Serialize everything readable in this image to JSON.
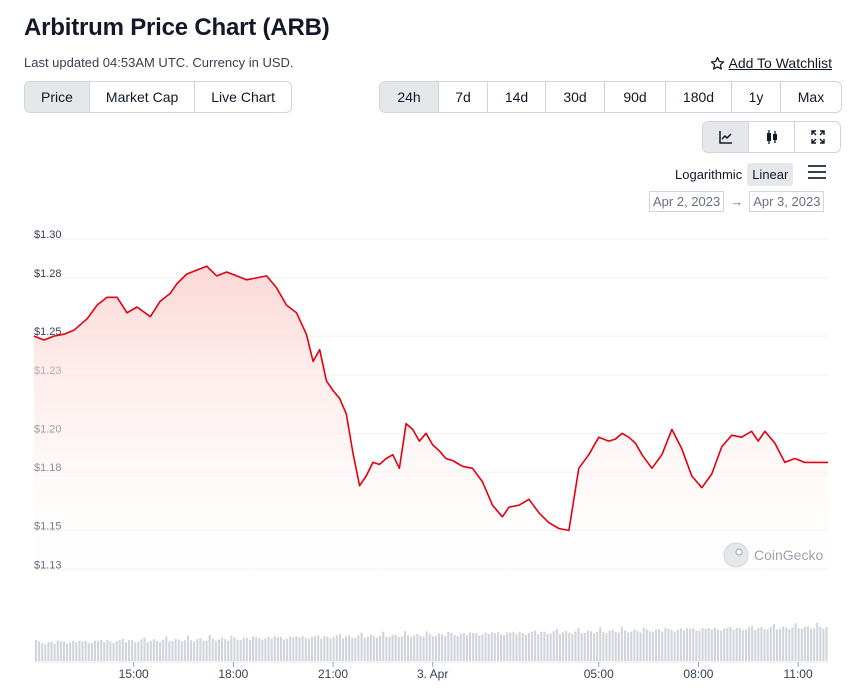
{
  "header": {
    "title": "Arbitrum Price Chart (ARB)",
    "subtitle": "Last updated 04:53AM UTC. Currency in USD.",
    "watchlist_label": "Add To Watchlist",
    "watchlist_icon": "star-outline-icon"
  },
  "tabs": [
    {
      "label": "Price",
      "active": true
    },
    {
      "label": "Market Cap",
      "active": false
    },
    {
      "label": "Live Chart",
      "active": false
    }
  ],
  "ranges": [
    {
      "label": "24h",
      "active": true
    },
    {
      "label": "7d",
      "active": false
    },
    {
      "label": "14d",
      "active": false
    },
    {
      "label": "30d",
      "active": false
    },
    {
      "label": "90d",
      "active": false
    },
    {
      "label": "180d",
      "active": false
    },
    {
      "label": "1y",
      "active": false
    },
    {
      "label": "Max",
      "active": false
    }
  ],
  "chart_types": [
    {
      "icon": "line-chart-icon",
      "active": true
    },
    {
      "icon": "candlestick-icon",
      "active": false
    },
    {
      "icon": "expand-icon",
      "active": false
    }
  ],
  "scale": {
    "logarithmic_label": "Logarithmic",
    "linear_label": "Linear",
    "active": "Linear",
    "menu_icon": "hamburger-menu-icon"
  },
  "date_range": {
    "from": "Apr 2, 2023",
    "arrow": "→",
    "to": "Apr 3, 2023"
  },
  "watermark": "CoinGecko",
  "colors": {
    "line": "#e3000f",
    "fill_top": "#fcd4d2",
    "volume": "#d1d5db",
    "active_bg": "#e5e7eb"
  },
  "chart_data": {
    "type": "line",
    "title": "",
    "xlabel": "",
    "ylabel": "",
    "ylim": [
      1.125,
      1.3
    ],
    "yticks": [
      1.3,
      1.28,
      1.25,
      1.23,
      1.2,
      1.18,
      1.15,
      1.13
    ],
    "ytick_labels": [
      "$1.30",
      "$1.28",
      "$1.25",
      "$1.23",
      "$1.20",
      "$1.18",
      "$1.15",
      "$1.13"
    ],
    "x_range_hours": [
      12.0,
      35.9
    ],
    "x_ticks": [
      {
        "h": 15,
        "label": "15:00"
      },
      {
        "h": 18,
        "label": "18:00"
      },
      {
        "h": 21,
        "label": "21:00"
      },
      {
        "h": 24,
        "label": "3. Apr"
      },
      {
        "h": 29,
        "label": "05:00"
      },
      {
        "h": 32,
        "label": "08:00"
      },
      {
        "h": 35,
        "label": "11:00"
      }
    ],
    "grid": true,
    "series": [
      {
        "x": [
          12.0,
          12.3,
          12.6,
          12.9,
          13.2,
          13.6,
          13.9,
          14.2,
          14.5,
          14.8,
          15.1,
          15.5,
          15.8,
          16.1,
          16.3,
          16.6,
          16.9,
          17.2,
          17.5,
          17.8,
          18.1,
          18.4,
          18.7,
          19.0,
          19.3,
          19.6,
          19.9,
          20.2,
          20.4,
          20.6,
          20.8,
          21.0,
          21.2,
          21.4,
          21.6,
          21.8,
          22.0,
          22.2,
          22.4,
          22.6,
          22.8,
          23.0,
          23.2,
          23.4,
          23.6,
          23.8,
          24.0,
          24.2,
          24.4,
          24.6,
          24.9,
          25.2,
          25.5,
          25.8,
          26.1,
          26.3,
          26.6,
          26.9,
          27.2,
          27.5,
          27.8,
          28.1,
          28.4,
          28.7,
          29.0,
          29.3,
          29.5,
          29.7,
          29.9,
          30.1,
          30.3,
          30.6,
          30.9,
          31.2,
          31.5,
          31.8,
          32.1,
          32.4,
          32.7,
          33.0,
          33.3,
          33.6,
          33.8,
          34.0,
          34.3,
          34.6,
          34.9,
          35.2,
          35.5,
          35.9
        ],
        "y": [
          1.25,
          1.248,
          1.25,
          1.251,
          1.253,
          1.259,
          1.266,
          1.27,
          1.27,
          1.262,
          1.265,
          1.26,
          1.268,
          1.272,
          1.277,
          1.282,
          1.284,
          1.286,
          1.281,
          1.283,
          1.281,
          1.279,
          1.28,
          1.281,
          1.275,
          1.266,
          1.262,
          1.251,
          1.237,
          1.243,
          1.227,
          1.222,
          1.218,
          1.21,
          1.19,
          1.173,
          1.178,
          1.185,
          1.184,
          1.187,
          1.189,
          1.182,
          1.205,
          1.202,
          1.196,
          1.2,
          1.194,
          1.191,
          1.187,
          1.186,
          1.183,
          1.182,
          1.175,
          1.163,
          1.157,
          1.162,
          1.163,
          1.166,
          1.159,
          1.154,
          1.151,
          1.15,
          1.182,
          1.189,
          1.198,
          1.196,
          1.197,
          1.2,
          1.198,
          1.195,
          1.189,
          1.182,
          1.189,
          1.202,
          1.192,
          1.178,
          1.172,
          1.179,
          1.193,
          1.199,
          1.198,
          1.201,
          1.196,
          1.201,
          1.195,
          1.185,
          1.187,
          1.185,
          1.185,
          1.185
        ]
      }
    ]
  }
}
